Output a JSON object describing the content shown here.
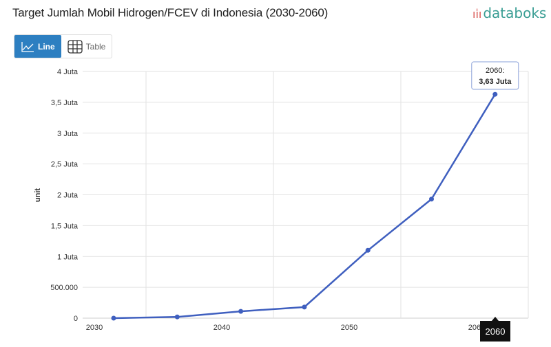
{
  "header": {
    "title": "Target Jumlah Mobil Hidrogen/FCEV di Indonesia (2030-2060)",
    "logo": "databoks"
  },
  "tabs": [
    {
      "label": "Line",
      "icon": "line-chart-icon",
      "active": true
    },
    {
      "label": "Table",
      "icon": "table-icon",
      "active": false
    }
  ],
  "chart_data": {
    "type": "line",
    "title": "Target Jumlah Mobil Hidrogen/FCEV di Indonesia (2030-2060)",
    "ylabel": "unit",
    "xlabel": "",
    "x": [
      2030,
      2035,
      2040,
      2045,
      2050,
      2055,
      2060
    ],
    "values": [
      0,
      20000,
      110000,
      180000,
      1100000,
      1930000,
      3630000
    ],
    "ylim": [
      0,
      4000000
    ],
    "y_ticks": [
      "0",
      "500.000",
      "1 Juta",
      "1,5 Juta",
      "2 Juta",
      "2,5 Juta",
      "3 Juta",
      "3,5 Juta",
      "4 Juta"
    ],
    "x_ticks": [
      "2030",
      "2040",
      "2050",
      "2060"
    ],
    "grid": true,
    "color": "#3f5fbf",
    "tooltip": {
      "year": "2060:",
      "value": "3,63 Juta"
    },
    "hover_label": "2060"
  }
}
